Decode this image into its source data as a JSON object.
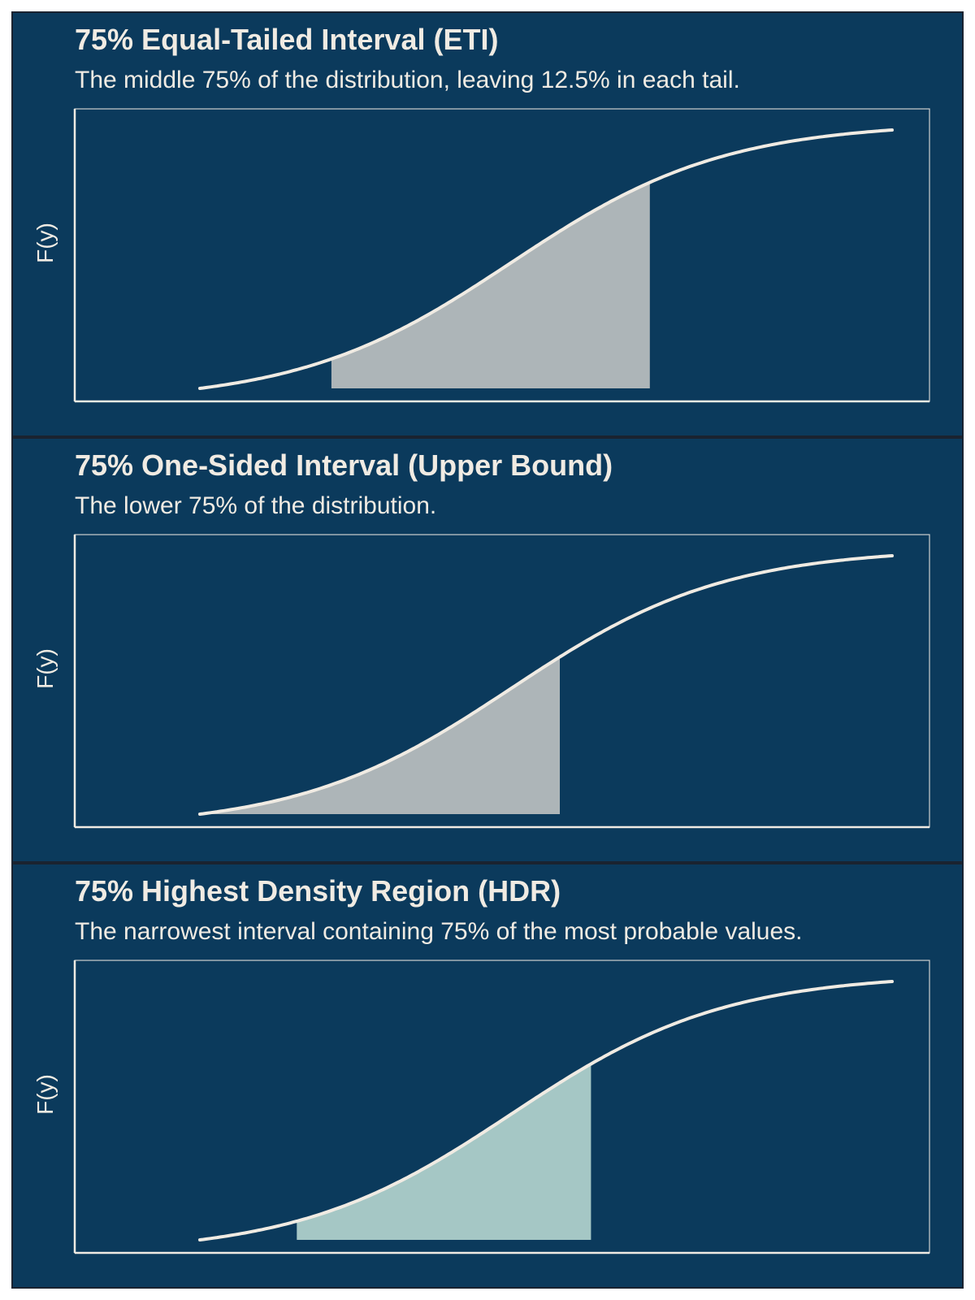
{
  "colors": {
    "background": "#0b3a5c",
    "curve": "#f0ebe3",
    "frame": "#f0ebe3",
    "grey_fill": "#adb5b8",
    "teal_fill": "#a5c7c5"
  },
  "chart_data": [
    {
      "type": "area",
      "title": "75% Equal-Tailed Interval (ETI)",
      "subtitle": "The middle 75% of the distribution, leaving 12.5% in each tail.",
      "ylabel": "F(y)",
      "xlabel": "",
      "grid": false,
      "shaded_interval": [
        0.19,
        0.65
      ],
      "shade_color": "grey"
    },
    {
      "type": "area",
      "title": "75% One-Sided Interval (Upper Bound)",
      "subtitle": "The lower 75% of the distribution.",
      "ylabel": "F(y)",
      "xlabel": "",
      "grid": false,
      "shaded_interval": [
        0.0,
        0.52
      ],
      "shade_color": "grey"
    },
    {
      "type": "area",
      "title": "75% Highest Density Region (HDR)",
      "subtitle": "The narrowest interval containing 75% of the most probable values.",
      "ylabel": "F(y)",
      "xlabel": "",
      "grid": false,
      "shaded_interval": [
        0.14,
        0.565
      ],
      "shade_color": "teal"
    }
  ]
}
